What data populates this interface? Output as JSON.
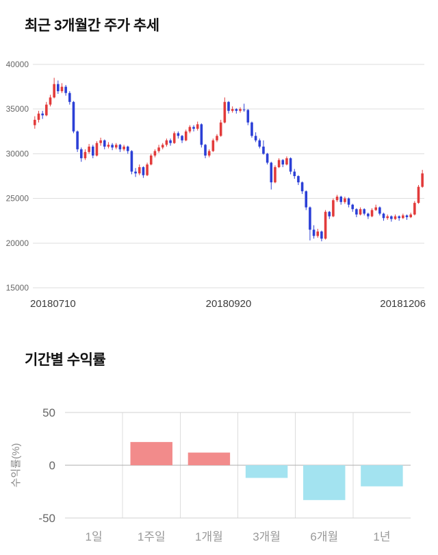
{
  "chart_data": [
    {
      "type": "candlestick",
      "title": "최근 3개월간 주가 추세",
      "ylim": [
        15000,
        40000
      ],
      "yticks": [
        15000,
        20000,
        25000,
        30000,
        35000,
        40000
      ],
      "xticks": [
        "20180710",
        "20180920",
        "20181206"
      ],
      "up_color": "#e23b3b",
      "down_color": "#2b3fd6",
      "grid": true,
      "legend": "none",
      "candles": [
        [
          33200,
          34200,
          32800,
          33800
        ],
        [
          33800,
          34800,
          33500,
          34500
        ],
        [
          34500,
          34800,
          33900,
          34300
        ],
        [
          34300,
          35800,
          34200,
          35500
        ],
        [
          35500,
          36600,
          35300,
          36300
        ],
        [
          36300,
          38500,
          36200,
          37800
        ],
        [
          37800,
          38200,
          36700,
          37000
        ],
        [
          37000,
          37900,
          36800,
          37500
        ],
        [
          37500,
          37700,
          36500,
          36800
        ],
        [
          36800,
          37000,
          35500,
          35800
        ],
        [
          35800,
          35900,
          32300,
          32500
        ],
        [
          32500,
          32600,
          30200,
          30500
        ],
        [
          30500,
          30700,
          29100,
          29500
        ],
        [
          29500,
          30500,
          29300,
          30200
        ],
        [
          30200,
          31100,
          30000,
          30800
        ],
        [
          30800,
          31000,
          29500,
          29800
        ],
        [
          29800,
          31400,
          29700,
          31200
        ],
        [
          31200,
          31800,
          30900,
          31500
        ],
        [
          31500,
          31600,
          30500,
          30800
        ],
        [
          30800,
          31300,
          30600,
          31000
        ],
        [
          31000,
          31200,
          30400,
          30700
        ],
        [
          30700,
          31200,
          30500,
          31000
        ],
        [
          31000,
          31100,
          30200,
          30500
        ],
        [
          30500,
          31000,
          30300,
          30800
        ],
        [
          30800,
          30900,
          30000,
          30300
        ],
        [
          30300,
          30400,
          27700,
          28000
        ],
        [
          28000,
          28400,
          27400,
          27800
        ],
        [
          27800,
          28800,
          27600,
          28500
        ],
        [
          28500,
          28600,
          27300,
          27600
        ],
        [
          27600,
          29000,
          27500,
          28800
        ],
        [
          28800,
          30000,
          28700,
          29800
        ],
        [
          29800,
          30500,
          29600,
          30300
        ],
        [
          30300,
          31000,
          30100,
          30700
        ],
        [
          30700,
          31200,
          30500,
          31000
        ],
        [
          31000,
          31700,
          30800,
          31500
        ],
        [
          31500,
          31700,
          30900,
          31200
        ],
        [
          31200,
          32500,
          31100,
          32300
        ],
        [
          32300,
          32500,
          31700,
          32000
        ],
        [
          32000,
          32100,
          31200,
          31500
        ],
        [
          31500,
          32700,
          31400,
          32500
        ],
        [
          32500,
          33200,
          32300,
          33000
        ],
        [
          33000,
          33200,
          32500,
          32800
        ],
        [
          32800,
          33600,
          32600,
          33300
        ],
        [
          33300,
          33400,
          30700,
          31000
        ],
        [
          31000,
          31100,
          29500,
          29800
        ],
        [
          29800,
          30500,
          29600,
          30300
        ],
        [
          30300,
          31700,
          30200,
          31500
        ],
        [
          31500,
          32200,
          31300,
          32000
        ],
        [
          32000,
          33800,
          31900,
          33500
        ],
        [
          33500,
          36300,
          33400,
          35800
        ],
        [
          35800,
          35900,
          34500,
          34800
        ],
        [
          34800,
          35300,
          34600,
          35000
        ],
        [
          35000,
          35100,
          34500,
          34800
        ],
        [
          34800,
          35200,
          34600,
          35000
        ],
        [
          34950,
          35600,
          34700,
          34900
        ],
        [
          34900,
          35000,
          33200,
          33500
        ],
        [
          33500,
          33600,
          31800,
          32000
        ],
        [
          32000,
          32400,
          31300,
          31500
        ],
        [
          31500,
          31700,
          30600,
          30800
        ],
        [
          30800,
          31500,
          29900,
          30000
        ],
        [
          30000,
          30100,
          28800,
          29000
        ],
        [
          29000,
          29100,
          26000,
          26800
        ],
        [
          26800,
          28700,
          26700,
          28500
        ],
        [
          28500,
          29500,
          28400,
          29300
        ],
        [
          29300,
          29400,
          28500,
          28800
        ],
        [
          28800,
          29700,
          28700,
          29500
        ],
        [
          29500,
          29600,
          27700,
          28000
        ],
        [
          28000,
          28300,
          27200,
          27500
        ],
        [
          27500,
          27600,
          26500,
          26800
        ],
        [
          26800,
          26900,
          25500,
          25800
        ],
        [
          25800,
          25900,
          23700,
          24000
        ],
        [
          24000,
          24100,
          20300,
          21500
        ],
        [
          21500,
          22000,
          20500,
          20800
        ],
        [
          20800,
          21600,
          20600,
          21300
        ],
        [
          21300,
          21400,
          20200,
          20500
        ],
        [
          20500,
          23700,
          20400,
          23500
        ],
        [
          23500,
          23600,
          22700,
          23000
        ],
        [
          23000,
          25000,
          22900,
          24800
        ],
        [
          24800,
          25400,
          24600,
          25200
        ],
        [
          25200,
          25300,
          24300,
          24600
        ],
        [
          24600,
          25200,
          24400,
          25000
        ],
        [
          25000,
          25100,
          24000,
          24300
        ],
        [
          24300,
          24400,
          23500,
          23800
        ],
        [
          23800,
          23900,
          22900,
          23200
        ],
        [
          23200,
          24000,
          23100,
          23800
        ],
        [
          23800,
          23900,
          23100,
          23300
        ],
        [
          23300,
          23400,
          22700,
          23000
        ],
        [
          23000,
          23900,
          22900,
          23700
        ],
        [
          23700,
          24300,
          23600,
          24000
        ],
        [
          24000,
          24100,
          23100,
          23300
        ],
        [
          23300,
          23400,
          22500,
          22800
        ],
        [
          22800,
          23200,
          22600,
          23000
        ],
        [
          23000,
          23100,
          22400,
          22700
        ],
        [
          22700,
          23200,
          22600,
          23000
        ],
        [
          23000,
          23100,
          22500,
          22800
        ],
        [
          22800,
          23300,
          22700,
          23100
        ],
        [
          23100,
          23200,
          22600,
          22900
        ],
        [
          22900,
          23400,
          22800,
          23200
        ],
        [
          23200,
          24700,
          23100,
          24500
        ],
        [
          24500,
          26500,
          24400,
          26300
        ],
        [
          26300,
          28200,
          26200,
          27800
        ]
      ]
    },
    {
      "type": "bar",
      "title": "기간별 수익률",
      "ylabel": "수익률(%)",
      "categories": [
        "1일",
        "1주일",
        "1개월",
        "3개월",
        "6개월",
        "1년"
      ],
      "values": [
        0,
        22,
        12,
        -12,
        -33,
        -20
      ],
      "ylim": [
        -50,
        50
      ],
      "yticks": [
        50,
        0,
        -50
      ],
      "positive_color": "#f28b8b",
      "negative_color": "#a3e3f0",
      "grid": true
    }
  ]
}
